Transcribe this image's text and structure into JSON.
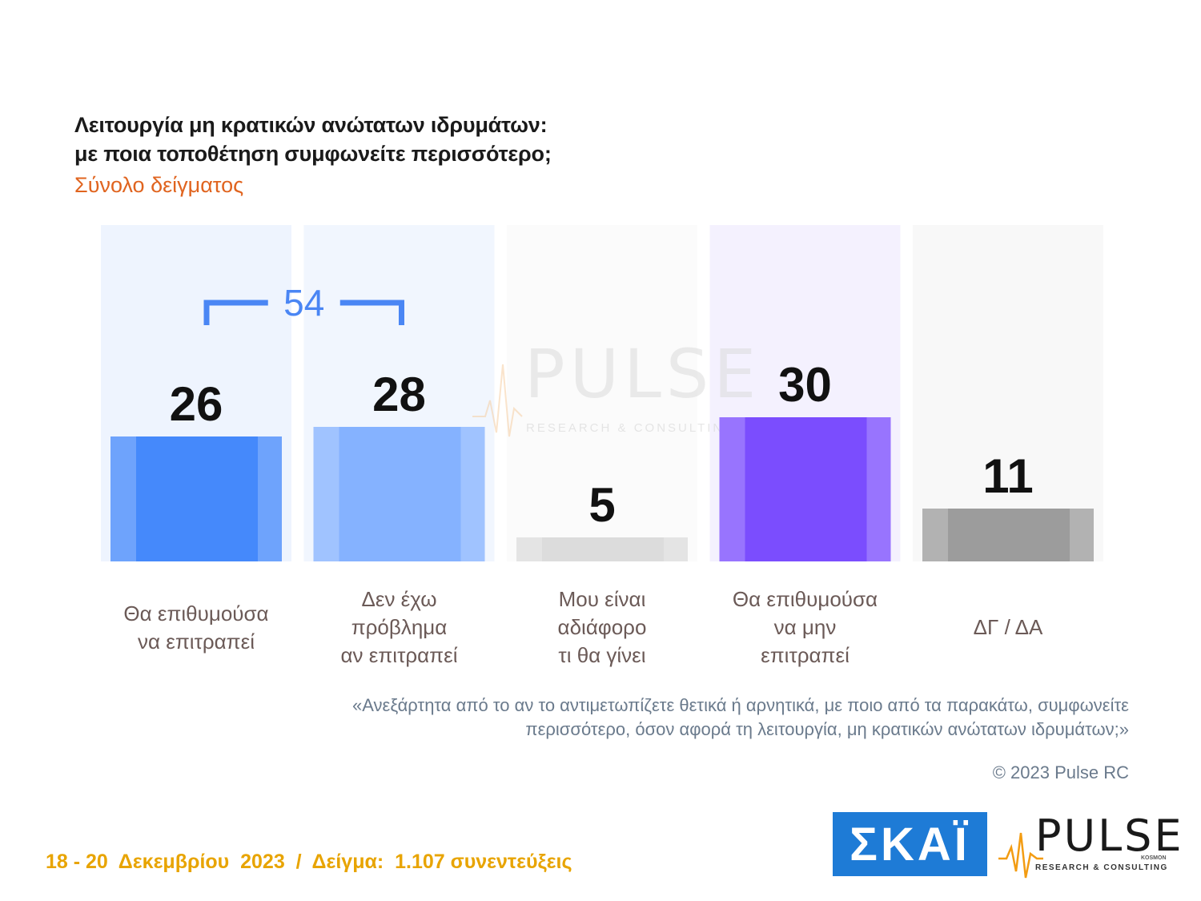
{
  "title_lines": [
    "Λειτουργία μη κρατικών ανώτατων ιδρυμάτων:",
    "με ποια τοποθέτηση συμφωνείτε περισσότερο;"
  ],
  "subtitle": "Σύνολο δείγματος",
  "chart_data": {
    "type": "bar",
    "categories": [
      [
        "Θα επιθυμούσα",
        "να επιτραπεί"
      ],
      [
        "Δεν έχω",
        "πρόβλημα",
        "αν επιτραπεί"
      ],
      [
        "Μου είναι",
        "αδιάφορο",
        "τι θα γίνει"
      ],
      [
        "Θα επιθυμούσα",
        "να μην",
        "επιτραπεί"
      ],
      [
        "ΔΓ / ΔΑ"
      ]
    ],
    "values": [
      26,
      28,
      5,
      30,
      11
    ],
    "colors": [
      "#4589fb",
      "#85b2ff",
      "#dcdcdc",
      "#7b4dfe",
      "#9c9c9c"
    ],
    "bracket": {
      "label": "54",
      "spans": [
        0,
        1
      ],
      "color": "#4a86f4"
    },
    "ylim": [
      0,
      40
    ]
  },
  "watermark": {
    "word": "PULSE",
    "sub": "RESEARCH & CONSULTING"
  },
  "note_lines": [
    "«Ανεξάρτητα από το αν το αντιμετωπίζετε θετικά ή αρνητικά, με ποιο από τα παρακάτω, συμφωνείτε",
    "περισσότερο, όσον αφορά τη λειτουργία, μη κρατικών ανώτατων ιδρυμάτων;»"
  ],
  "copyright": "© 2023 Pulse RC",
  "footer": "18 - 20  Δεκεμβρίου  2023  /  Δείγμα:  1.107 συνεντεύξεις",
  "logos": {
    "skai": "ΣΚΑΪ",
    "pulse": "PULSE",
    "pulse_sub": "RESEARCH & CONSULTING",
    "pulse_kosmon": "KOSMON"
  }
}
